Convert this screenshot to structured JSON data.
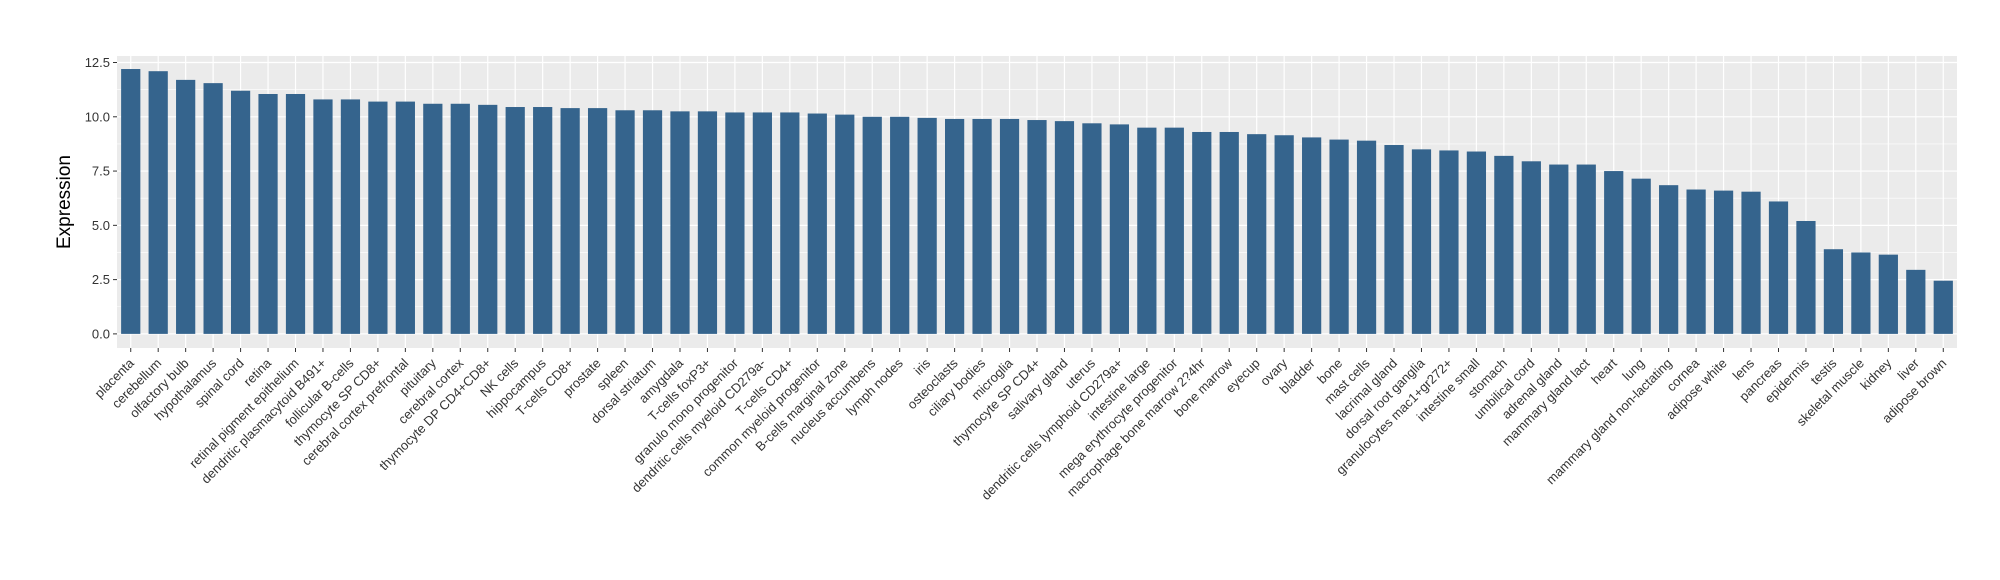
{
  "chart_data": {
    "type": "bar",
    "ylabel": "Expression",
    "xlabel": "",
    "ylim": [
      -0.65,
      12.8
    ],
    "yticks": [
      0.0,
      2.5,
      5.0,
      7.5,
      10.0,
      12.5
    ],
    "ytick_labels": [
      "0.0",
      "2.5",
      "5.0",
      "7.5",
      "10.0",
      "12.5"
    ],
    "grid": true,
    "bar_color": "#35648d",
    "panel_color": "#ebebeb",
    "grid_color": "#ffffff",
    "categories": [
      "placenta",
      "cerebellum",
      "olfactory bulb",
      "hypothalamus",
      "spinal cord",
      "retina",
      "retinal pigment epithelium",
      "dendritic plasmacytoid B491+",
      "follicular B-cells",
      "thymocyte SP CD8+",
      "cerebral cortex prefrontal",
      "pituitary",
      "cerebral cortex",
      "thymocyte DP CD4+CD8+",
      "NK cells",
      "hippocampus",
      "T-cells CD8+",
      "prostate",
      "spleen",
      "dorsal striatum",
      "amygdala",
      "T-cells foxP3+",
      "granulo mono progenitor",
      "dendritic cells myeloid CD279a-",
      "T-cells CD4+",
      "common myeloid progenitor",
      "B-cells marginal zone",
      "nucleus accumbens",
      "lymph nodes",
      "iris",
      "osteoclasts",
      "ciliary bodies",
      "microglia",
      "thymocyte SP CD4+",
      "salivary gland",
      "uterus",
      "dendritic cells lymphoid CD279a+",
      "intestine large",
      "mega erythrocyte progenitor",
      "macrophage bone marrow 2?4hr",
      "bone marrow",
      "eyecup",
      "ovary",
      "bladder",
      "bone",
      "mast cells",
      "lacrimal gland",
      "dorsal root ganglia",
      "granulocytes mac1+gr272+",
      "intestine small",
      "stomach",
      "umbilical cord",
      "adrenal gland",
      "mammary gland lact",
      "heart",
      "lung",
      "mammary gland non-lactating",
      "cornea",
      "adipose white",
      "lens",
      "pancreas",
      "epidermis",
      "testis",
      "skeletal muscle",
      "kidney",
      "liver",
      "adipose brown"
    ],
    "values": [
      12.2,
      12.1,
      11.7,
      11.55,
      11.2,
      11.05,
      11.05,
      10.8,
      10.8,
      10.7,
      10.7,
      10.6,
      10.6,
      10.55,
      10.45,
      10.45,
      10.4,
      10.4,
      10.3,
      10.3,
      10.25,
      10.25,
      10.2,
      10.2,
      10.2,
      10.15,
      10.1,
      10.0,
      10.0,
      9.95,
      9.9,
      9.9,
      9.9,
      9.85,
      9.8,
      9.7,
      9.65,
      9.5,
      9.5,
      9.3,
      9.3,
      9.2,
      9.15,
      9.05,
      8.95,
      8.9,
      8.7,
      8.5,
      8.45,
      8.4,
      8.2,
      7.95,
      7.8,
      7.8,
      7.5,
      7.15,
      6.85,
      6.65,
      6.6,
      6.55,
      6.1,
      5.2,
      3.9,
      3.75,
      3.65,
      2.95,
      2.45
    ]
  }
}
